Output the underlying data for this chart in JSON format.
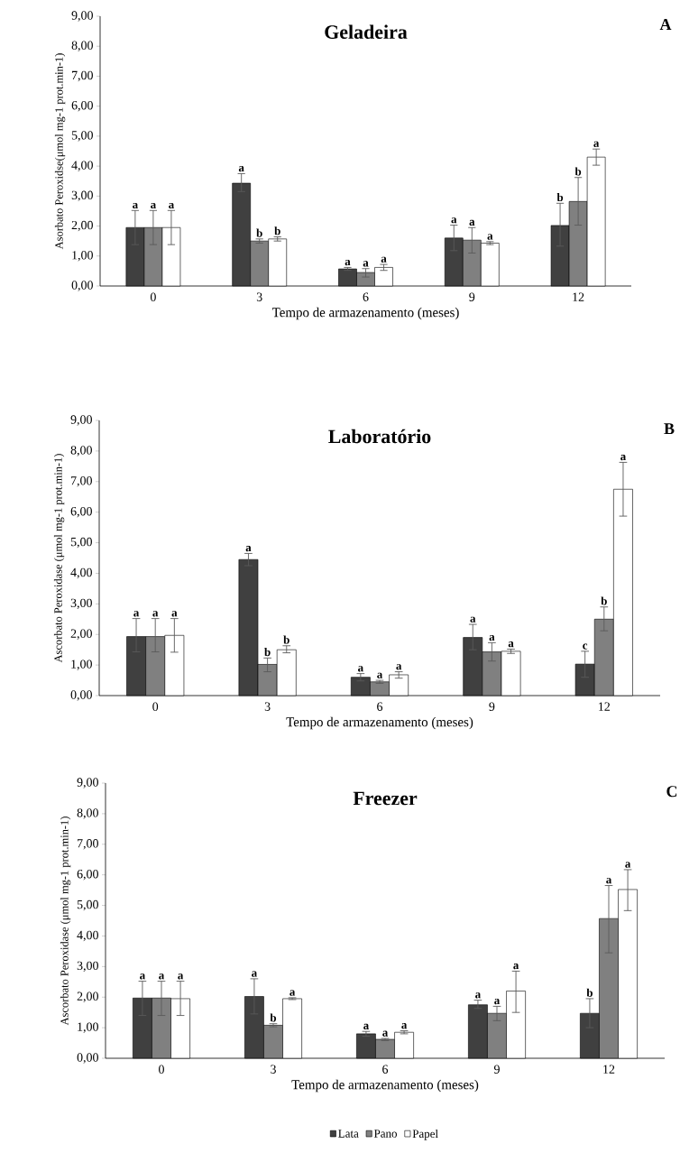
{
  "chart_data": [
    {
      "type": "bar",
      "title": "Geladeira",
      "xlabel": "Tempo de armazenamento (meses)",
      "ylabel": "Asorbato Peroxidse(μmol mg-1 prot.min-1)",
      "annotations": [
        "A"
      ],
      "categories": [
        "0",
        "3",
        "6",
        "9",
        "12"
      ],
      "ylim": [
        0,
        9
      ],
      "yticks": [
        {
          "value": 0,
          "label": "0,00"
        },
        {
          "value": 1,
          "label": "1,00"
        },
        {
          "value": 2,
          "label": "2,00"
        },
        {
          "value": 3,
          "label": "3,00"
        },
        {
          "value": 4,
          "label": "4,00"
        },
        {
          "value": 5,
          "label": "5,00"
        },
        {
          "value": 6,
          "label": "6,00"
        },
        {
          "value": 7,
          "label": "7,00"
        },
        {
          "value": 8,
          "label": "8,00"
        },
        {
          "value": 9,
          "label": "9,00"
        }
      ],
      "series": [
        {
          "color": "#404040",
          "values": [
            1.95,
            3.43,
            0.57,
            1.6,
            2.02
          ],
          "errors": [
            [
              1.38,
              2.52
            ],
            [
              3.15,
              3.75
            ],
            [
              0.52,
              0.62
            ],
            [
              1.18,
              2.03
            ],
            [
              1.33,
              2.76
            ]
          ],
          "value_labels": [
            "a",
            "a",
            "a",
            "a",
            "b"
          ]
        },
        {
          "color": "#808080",
          "values": [
            1.95,
            1.5,
            0.45,
            1.53,
            2.82
          ],
          "errors": [
            [
              1.38,
              2.52
            ],
            [
              1.43,
              1.57
            ],
            [
              0.3,
              0.58
            ],
            [
              1.1,
              1.95
            ],
            [
              2.03,
              3.62
            ]
          ],
          "value_labels": [
            "a",
            "b",
            "a",
            "a",
            "b"
          ]
        },
        {
          "color": "#ffffff",
          "values": [
            1.95,
            1.57,
            0.62,
            1.43,
            4.3
          ],
          "errors": [
            [
              1.38,
              2.52
            ],
            [
              1.5,
              1.64
            ],
            [
              0.52,
              0.72
            ],
            [
              1.38,
              1.48
            ],
            [
              4.03,
              4.57
            ]
          ],
          "value_labels": [
            "a",
            "b",
            "a",
            "a",
            "a"
          ]
        }
      ]
    },
    {
      "type": "bar",
      "title": "Laboratório",
      "xlabel": "Tempo de armazenamento (meses)",
      "ylabel": "Ascorbato Peroxidase (μmol mg-1 prot.min-1)",
      "annotations": [
        "B"
      ],
      "categories": [
        "0",
        "3",
        "6",
        "9",
        "12"
      ],
      "ylim": [
        0,
        9
      ],
      "yticks": [
        {
          "value": 0,
          "label": "0,00"
        },
        {
          "value": 1,
          "label": "1,00"
        },
        {
          "value": 2,
          "label": "2,00"
        },
        {
          "value": 3,
          "label": "3,00"
        },
        {
          "value": 4,
          "label": "4,00"
        },
        {
          "value": 5,
          "label": "5,00"
        },
        {
          "value": 6,
          "label": "6,00"
        },
        {
          "value": 7,
          "label": "7,00"
        },
        {
          "value": 8,
          "label": "8,00"
        },
        {
          "value": 9,
          "label": "9,00"
        }
      ],
      "series": [
        {
          "color": "#404040",
          "values": [
            1.93,
            4.45,
            0.6,
            1.9,
            1.03
          ],
          "errors": [
            [
              1.43,
              2.52
            ],
            [
              4.25,
              4.65
            ],
            [
              0.48,
              0.72
            ],
            [
              1.5,
              2.33
            ],
            [
              0.6,
              1.45
            ]
          ],
          "value_labels": [
            "a",
            "a",
            "a",
            "a",
            "c"
          ]
        },
        {
          "color": "#808080",
          "values": [
            1.93,
            1.02,
            0.45,
            1.43,
            2.5
          ],
          "errors": [
            [
              1.43,
              2.52
            ],
            [
              0.78,
              1.23
            ],
            [
              0.4,
              0.5
            ],
            [
              1.13,
              1.73
            ],
            [
              2.12,
              2.9
            ]
          ],
          "value_labels": [
            "a",
            "b",
            "a",
            "a",
            "b"
          ]
        },
        {
          "color": "#ffffff",
          "values": [
            1.97,
            1.5,
            0.68,
            1.45,
            6.75
          ],
          "errors": [
            [
              1.42,
              2.52
            ],
            [
              1.4,
              1.63
            ],
            [
              0.57,
              0.78
            ],
            [
              1.38,
              1.52
            ],
            [
              5.87,
              7.63
            ]
          ],
          "value_labels": [
            "a",
            "b",
            "a",
            "a",
            "a"
          ]
        }
      ]
    },
    {
      "type": "bar",
      "title": "Freezer",
      "xlabel": "Tempo de armazenamento (meses)",
      "ylabel": "Ascorbato Peroxidase (μmol mg-1 prot.min-1)",
      "annotations": [
        "C"
      ],
      "legend": "bottom",
      "categories": [
        "0",
        "3",
        "6",
        "9",
        "12"
      ],
      "ylim": [
        0,
        9
      ],
      "yticks": [
        {
          "value": 0,
          "label": "0,00"
        },
        {
          "value": 1,
          "label": "1,00"
        },
        {
          "value": 2,
          "label": "2,00"
        },
        {
          "value": 3,
          "label": "3,00"
        },
        {
          "value": 4,
          "label": "4,00"
        },
        {
          "value": 5,
          "label": "5,00"
        },
        {
          "value": 6,
          "label": "6,00"
        },
        {
          "value": 7,
          "label": "7,00"
        },
        {
          "value": 8,
          "label": "8,00"
        },
        {
          "value": 9,
          "label": "9,00"
        }
      ],
      "series": [
        {
          "name": "Lata",
          "color": "#404040",
          "values": [
            1.97,
            2.02,
            0.8,
            1.75,
            1.47
          ],
          "errors": [
            [
              1.4,
              2.52
            ],
            [
              1.45,
              2.6
            ],
            [
              0.72,
              0.88
            ],
            [
              1.63,
              1.9
            ],
            [
              1.0,
              1.95
            ]
          ],
          "value_labels": [
            "a",
            "a",
            "a",
            "a",
            "b"
          ]
        },
        {
          "name": "Pano",
          "color": "#808080",
          "values": [
            1.97,
            1.08,
            0.62,
            1.47,
            4.57
          ],
          "errors": [
            [
              1.4,
              2.52
            ],
            [
              1.03,
              1.13
            ],
            [
              0.58,
              0.65
            ],
            [
              1.23,
              1.7
            ],
            [
              3.45,
              5.65
            ]
          ],
          "value_labels": [
            "a",
            "b",
            "a",
            "a",
            "a"
          ]
        },
        {
          "name": "Papel",
          "color": "#ffffff",
          "values": [
            1.95,
            1.95,
            0.85,
            2.2,
            5.52
          ],
          "errors": [
            [
              1.4,
              2.52
            ],
            [
              1.92,
              1.98
            ],
            [
              0.8,
              0.9
            ],
            [
              1.5,
              2.85
            ],
            [
              4.83,
              6.17
            ]
          ],
          "value_labels": [
            "a",
            "a",
            "a",
            "a",
            "a"
          ]
        }
      ]
    }
  ]
}
